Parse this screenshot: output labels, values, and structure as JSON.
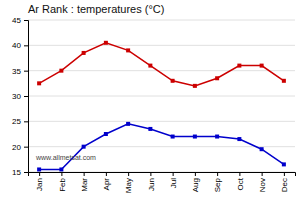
{
  "chart_data": {
    "type": "line",
    "title": "Ar Rank : temperatures (°C)",
    "categories": [
      "Jan",
      "Feb",
      "Mar",
      "Apr",
      "May",
      "Jun",
      "Jul",
      "Aug",
      "Sep",
      "Oct",
      "Nov",
      "Dec"
    ],
    "series": [
      {
        "color": "#cc0000",
        "values": [
          32.5,
          35.0,
          38.5,
          40.5,
          39.0,
          36.0,
          33.0,
          32.0,
          33.5,
          36.0,
          36.0,
          33.0
        ]
      },
      {
        "color": "#0000cc",
        "values": [
          15.5,
          15.5,
          20.0,
          22.5,
          24.5,
          23.5,
          22.0,
          22.0,
          22.0,
          21.5,
          19.5,
          16.5
        ]
      }
    ],
    "ylim": [
      15,
      45
    ],
    "yticks": [
      15,
      20,
      25,
      30,
      35,
      40,
      45
    ],
    "grid": true,
    "marker": "square",
    "annotations": [
      "www.allmetsat.com"
    ]
  }
}
